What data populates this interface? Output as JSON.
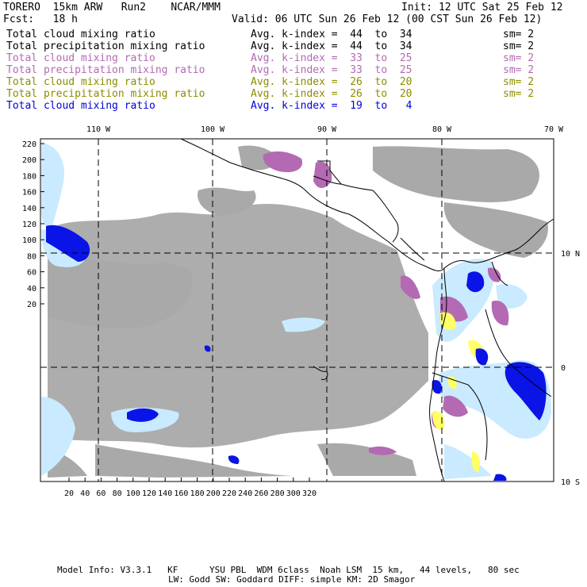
{
  "header": {
    "model": "TORERO  15km ARW   Run2    NCAR/MMM",
    "init": "Init: 12 UTC Sat 25 Feb 12",
    "fcst": "Fcst:   18 h",
    "valid": "Valid: 06 UTC Sun 26 Feb 12 (00 CST Sun 26 Feb 12)"
  },
  "legend": [
    {
      "field": "Total cloud mixing ratio",
      "index": "Avg. k-index =  44  to  34",
      "sm": "sm= 2",
      "color": "#000000"
    },
    {
      "field": "Total precipitation mixing ratio",
      "index": "Avg. k-index =  44  to  34",
      "sm": "sm= 2",
      "color": "#000000"
    },
    {
      "field": "Total cloud mixing ratio",
      "index": "Avg. k-index =  33  to  25",
      "sm": "sm= 2",
      "color": "#b36ab3"
    },
    {
      "field": "Total precipitation mixing ratio",
      "index": "Avg. k-index =  33  to  25",
      "sm": "sm= 2",
      "color": "#b36ab3"
    },
    {
      "field": "Total cloud mixing ratio",
      "index": "Avg. k-index =  26  to  20",
      "sm": "sm= 2",
      "color": "#8c8c00"
    },
    {
      "field": "Total precipitation mixing ratio",
      "index": "Avg. k-index =  26  to  20",
      "sm": "sm= 2",
      "color": "#8c8c00"
    },
    {
      "field": "Total cloud mixing ratio",
      "index": "Avg. k-index =  19  to   4",
      "sm": "",
      "color": "#0000e0"
    }
  ],
  "map": {
    "lon_labels": [
      "110 W",
      "100 W",
      "90 W",
      "80 W",
      "70 W"
    ],
    "lat_labels": [
      "10 N",
      "0",
      "10 S"
    ],
    "y_ticks": [
      "220",
      "200",
      "180",
      "160",
      "140",
      "120",
      "100",
      "80",
      "60",
      "40",
      "20"
    ],
    "x_ticks": [
      "20",
      "40",
      "60",
      "80",
      "100",
      "120",
      "140",
      "160",
      "180",
      "200",
      "220",
      "240",
      "260",
      "280",
      "300",
      "320"
    ],
    "colors": {
      "gray": "#a9a9a9",
      "purple": "#b36ab3",
      "yellow": "#ffff66",
      "blue": "#0a14e6",
      "lightblue": "#c9eaff",
      "midblue": "#7aa8f5"
    }
  },
  "footer": {
    "line1": "Model Info: V3.3.1   KF      YSU PBL  WDM 6class  Noah LSM  15 km,   44 levels,   80 sec",
    "line2": "LW: Godd SW: Goddard DIFF: simple KM: 2D Smagor"
  }
}
